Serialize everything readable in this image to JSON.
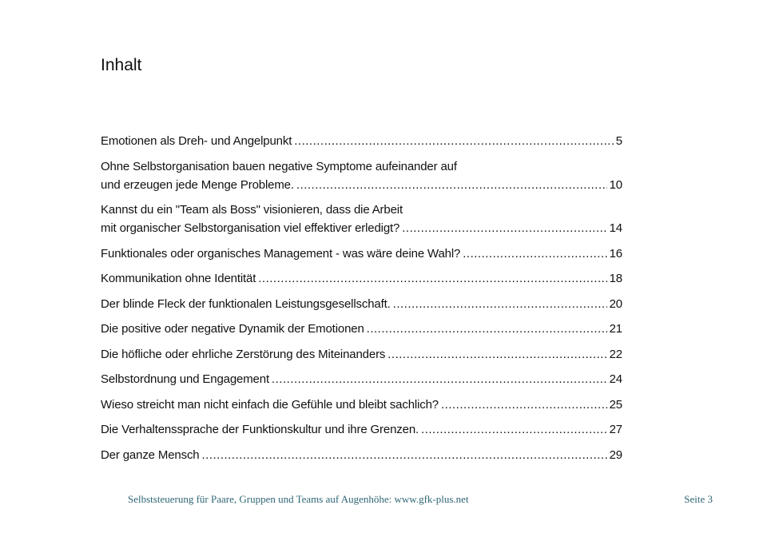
{
  "heading": "Inhalt",
  "toc": [
    {
      "lines": [
        "Emotionen als Dreh- und Angelpunkt"
      ],
      "page": "5"
    },
    {
      "lines": [
        "Ohne Selbstorganisation bauen negative Symptome aufeinander auf",
        "und erzeugen jede Menge Probleme."
      ],
      "page": "10"
    },
    {
      "lines": [
        "Kannst du ein \"Team als Boss\" visionieren, dass die Arbeit",
        "mit organischer Selbstorganisation viel effektiver erledigt?"
      ],
      "page": "14"
    },
    {
      "lines": [
        "Funktionales oder organisches Management - was wäre deine Wahl?"
      ],
      "page": "16"
    },
    {
      "lines": [
        "Kommunikation ohne Identität"
      ],
      "page": "18"
    },
    {
      "lines": [
        "Der blinde Fleck der funktionalen Leistungsgesellschaft."
      ],
      "page": "20"
    },
    {
      "lines": [
        "Die positive oder negative Dynamik der Emotionen"
      ],
      "page": "21"
    },
    {
      "lines": [
        "Die höfliche oder ehrliche Zerstörung des Miteinanders"
      ],
      "page": "22"
    },
    {
      "lines": [
        "Selbstordnung und Engagement"
      ],
      "page": "24"
    },
    {
      "lines": [
        "Wieso streicht man nicht einfach die Gefühle und bleibt sachlich?"
      ],
      "page": "25"
    },
    {
      "lines": [
        "Die Verhaltenssprache der Funktionskultur und ihre Grenzen."
      ],
      "page": "27"
    },
    {
      "lines": [
        "Der ganze Mensch"
      ],
      "page": "29"
    }
  ],
  "footer": {
    "text": "Selbststeuerung für Paare, Gruppen und Teams auf Augenhöhe:  www.gfk-plus.net",
    "page_label": "Seite 3"
  },
  "colors": {
    "footer": "#2f6675"
  }
}
